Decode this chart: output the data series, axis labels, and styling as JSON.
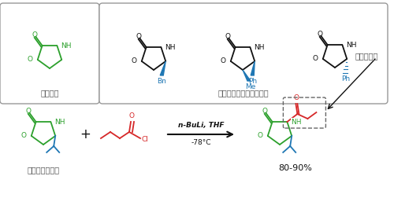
{
  "top_left_box_label": "嘎唠烷酶",
  "top_right_box_label": "可購常用的嘎唠烷酶試劑",
  "bottom_left_label": "簡單的醒化反應",
  "reaction_line1": "n-BuLi, THF",
  "reaction_line2": "-78°C",
  "yield_label": "80-90%",
  "amide_label": "醒亞胺結構",
  "green": "#2ca02c",
  "red": "#d62728",
  "blue": "#1f77b4",
  "black": "#111111",
  "dark_gray": "#555555"
}
